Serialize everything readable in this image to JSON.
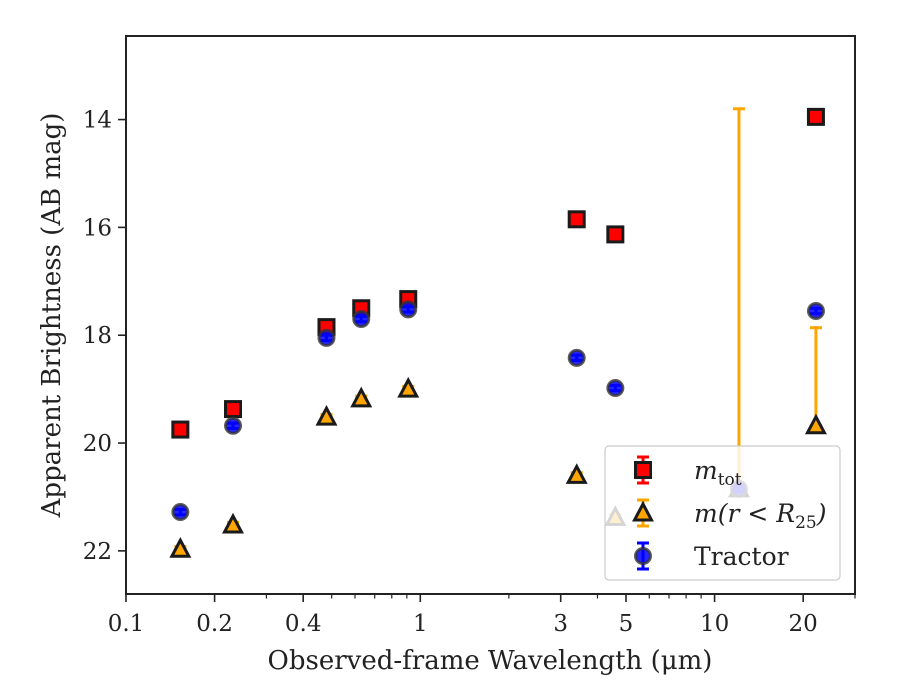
{
  "chart_data": {
    "type": "scatter",
    "xlabel": "Observed-frame Wavelength (μm)",
    "ylabel": "Apparent Brightness (AB mag)",
    "xscale": "log",
    "xlim": [
      0.1,
      30
    ],
    "ylim": [
      22.8,
      12.45
    ],
    "y_inverted": true,
    "x_ticks": [
      0.1,
      0.2,
      0.4,
      1,
      3,
      5,
      10,
      20
    ],
    "x_tick_labels": [
      "0.1",
      "0.2",
      "0.4",
      "1",
      "3",
      "5",
      "10",
      "20"
    ],
    "y_ticks": [
      14,
      16,
      18,
      20,
      22
    ],
    "y_tick_labels": [
      "14",
      "16",
      "18",
      "20",
      "22"
    ],
    "grid": false,
    "legend_position": "lower-right",
    "series": [
      {
        "name": "m_tot",
        "legend_main": "m",
        "legend_sub": "tot",
        "marker": "square",
        "face_color": "#ff0000",
        "edge_color": "#1a1a1a",
        "error_color": "#ff0000",
        "points": [
          {
            "x": 0.153,
            "y": 19.75,
            "yerr": 0.05
          },
          {
            "x": 0.231,
            "y": 19.37,
            "yerr": 0.05
          },
          {
            "x": 0.48,
            "y": 17.85,
            "yerr": 0.05
          },
          {
            "x": 0.63,
            "y": 17.5,
            "yerr": 0.05
          },
          {
            "x": 0.91,
            "y": 17.33,
            "yerr": 0.05
          },
          {
            "x": 3.4,
            "y": 15.85,
            "yerr": 0.05
          },
          {
            "x": 4.6,
            "y": 16.13,
            "yerr": 0.05
          },
          {
            "x": 22.1,
            "y": 13.95,
            "yerr": 0.05
          }
        ]
      },
      {
        "name": "m(r < R25)",
        "legend_main": "m(r < R",
        "legend_sub": "25",
        "legend_tail": ")",
        "marker": "triangle",
        "face_color": "#ffa500",
        "edge_color": "#1a1a1a",
        "error_color": "#ffa500",
        "points": [
          {
            "x": 0.153,
            "y": 21.97,
            "yerr": 0.05
          },
          {
            "x": 0.231,
            "y": 21.52,
            "yerr": 0.05
          },
          {
            "x": 0.48,
            "y": 19.52,
            "yerr": 0.05
          },
          {
            "x": 0.63,
            "y": 19.18,
            "yerr": 0.05
          },
          {
            "x": 0.91,
            "y": 19.0,
            "yerr": 0.05
          },
          {
            "x": 3.4,
            "y": 20.6,
            "yerr": 0.05
          },
          {
            "x": 4.6,
            "y": 21.38,
            "yerr": 0.05
          },
          {
            "x": 12.1,
            "y": 20.85,
            "yerr_low": 7.05,
            "yerr_high": 0.0
          },
          {
            "x": 22.1,
            "y": 19.68,
            "yerr_low": 1.82,
            "yerr_high": 0.0
          }
        ]
      },
      {
        "name": "Tractor",
        "marker": "circle",
        "face_color": "#0000ff",
        "edge_color": "#333333",
        "error_color": "#0000ff",
        "points": [
          {
            "x": 0.153,
            "y": 21.28,
            "yerr": 0.05
          },
          {
            "x": 0.231,
            "y": 19.68,
            "yerr": 0.05
          },
          {
            "x": 0.48,
            "y": 18.05,
            "yerr": 0.05
          },
          {
            "x": 0.63,
            "y": 17.7,
            "yerr": 0.05
          },
          {
            "x": 0.91,
            "y": 17.52,
            "yerr": 0.05
          },
          {
            "x": 3.4,
            "y": 18.42,
            "yerr": 0.05
          },
          {
            "x": 4.6,
            "y": 18.98,
            "yerr": 0.05
          },
          {
            "x": 12.1,
            "y": 20.85,
            "yerr": 0.05
          },
          {
            "x": 22.1,
            "y": 17.55,
            "yerr": 0.05
          }
        ]
      }
    ]
  }
}
